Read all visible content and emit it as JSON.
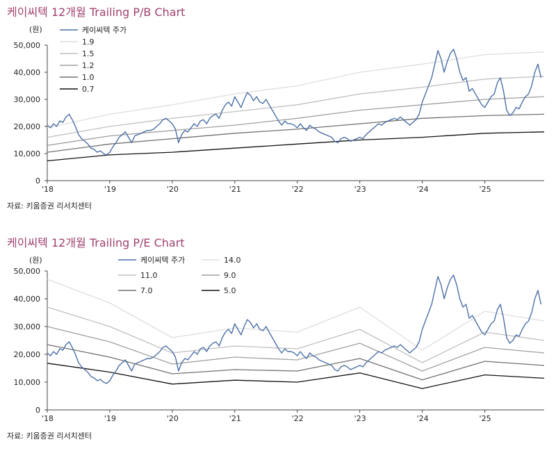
{
  "chart_data": [
    {
      "type": "line",
      "title": "케이씨텍 12개월 Trailing P/B Chart",
      "ylabel": "(원)",
      "source": "자료: 키움증권 리서치센터",
      "ylim": [
        0,
        50000
      ],
      "y_ticks": [
        "0",
        "10,000",
        "20,000",
        "30,000",
        "40,000",
        "50,000"
      ],
      "x_ticks": [
        "'18",
        "'19",
        "'20",
        "'21",
        "'22",
        "'23",
        "'24",
        "'25"
      ],
      "xlim": [
        2018,
        2025.95
      ],
      "legend": [
        "케이씨텍 주가",
        "1.9",
        "1.5",
        "1.2",
        "1.0",
        "0.7"
      ],
      "colors": {
        "price": "#4a6fa5",
        "b1": "#dedede",
        "b2": "#c0c0c0",
        "b3": "#a0a0a0",
        "b4": "#707070",
        "b5": "#111111"
      },
      "series": [
        {
          "name": "1.9",
          "x": [
            2018.0,
            2019.0,
            2020.0,
            2021.0,
            2022.0,
            2023.0,
            2024.0,
            2025.0,
            2025.95
          ],
          "values": [
            19500,
            24500,
            28000,
            32000,
            35000,
            40000,
            43000,
            46500,
            47500
          ]
        },
        {
          "name": "1.5",
          "x": [
            2018.0,
            2019.0,
            2020.0,
            2021.0,
            2022.0,
            2023.0,
            2024.0,
            2025.0,
            2025.95
          ],
          "values": [
            16000,
            20000,
            23000,
            25500,
            28000,
            32000,
            34500,
            37500,
            38500
          ]
        },
        {
          "name": "1.2",
          "x": [
            2018.0,
            2019.0,
            2020.0,
            2021.0,
            2022.0,
            2023.0,
            2024.0,
            2025.0,
            2025.95
          ],
          "values": [
            13000,
            16500,
            18500,
            20500,
            23000,
            26000,
            28000,
            30000,
            31000
          ]
        },
        {
          "name": "1.0",
          "x": [
            2018.0,
            2019.0,
            2020.0,
            2021.0,
            2022.0,
            2023.0,
            2024.0,
            2025.0,
            2025.95
          ],
          "values": [
            10500,
            13500,
            15500,
            17500,
            19000,
            21000,
            23000,
            24000,
            24500
          ]
        },
        {
          "name": "0.7",
          "x": [
            2018.0,
            2019.0,
            2020.0,
            2021.0,
            2022.0,
            2023.0,
            2024.0,
            2025.0,
            2025.95
          ],
          "values": [
            7300,
            9500,
            10500,
            12000,
            13500,
            15000,
            16000,
            17500,
            18000
          ]
        },
        {
          "name": "케이씨텍 주가",
          "x": [
            2018.0,
            2018.05,
            2018.1,
            2018.15,
            2018.2,
            2018.25,
            2018.3,
            2018.35,
            2018.4,
            2018.45,
            2018.5,
            2018.55,
            2018.6,
            2018.65,
            2018.7,
            2018.75,
            2018.8,
            2018.85,
            2018.9,
            2018.95,
            2019.0,
            2019.05,
            2019.1,
            2019.15,
            2019.2,
            2019.25,
            2019.3,
            2019.35,
            2019.4,
            2019.45,
            2019.5,
            2019.55,
            2019.6,
            2019.65,
            2019.7,
            2019.75,
            2019.8,
            2019.85,
            2019.9,
            2019.95,
            2020.0,
            2020.05,
            2020.1,
            2020.15,
            2020.2,
            2020.25,
            2020.3,
            2020.35,
            2020.4,
            2020.45,
            2020.5,
            2020.55,
            2020.6,
            2020.65,
            2020.7,
            2020.75,
            2020.8,
            2020.85,
            2020.9,
            2020.95,
            2021.0,
            2021.05,
            2021.1,
            2021.15,
            2021.2,
            2021.25,
            2021.3,
            2021.35,
            2021.4,
            2021.45,
            2021.5,
            2021.55,
            2021.6,
            2021.65,
            2021.7,
            2021.75,
            2021.8,
            2021.85,
            2021.9,
            2021.95,
            2022.0,
            2022.05,
            2022.1,
            2022.15,
            2022.2,
            2022.25,
            2022.3,
            2022.35,
            2022.4,
            2022.45,
            2022.5,
            2022.55,
            2022.6,
            2022.65,
            2022.7,
            2022.75,
            2022.8,
            2022.85,
            2022.9,
            2022.95,
            2023.0,
            2023.05,
            2023.1,
            2023.15,
            2023.2,
            2023.25,
            2023.3,
            2023.35,
            2023.4,
            2023.45,
            2023.5,
            2023.55,
            2023.6,
            2023.65,
            2023.7,
            2023.75,
            2023.8,
            2023.85,
            2023.9,
            2023.95,
            2024.0,
            2024.05,
            2024.1,
            2024.15,
            2024.2,
            2024.25,
            2024.3,
            2024.35,
            2024.4,
            2024.45,
            2024.5,
            2024.55,
            2024.6,
            2024.65,
            2024.7,
            2024.75,
            2024.8,
            2024.85,
            2024.9,
            2024.95,
            2025.0,
            2025.05,
            2025.1,
            2025.15,
            2025.2,
            2025.25,
            2025.3,
            2025.35,
            2025.4,
            2025.45,
            2025.5,
            2025.55,
            2025.6,
            2025.65,
            2025.7,
            2025.75,
            2025.8,
            2025.85,
            2025.9
          ],
          "values": [
            20500,
            19500,
            21000,
            20000,
            22000,
            21500,
            23500,
            24500,
            22500,
            20000,
            17000,
            15500,
            14500,
            13500,
            12000,
            11500,
            10500,
            11000,
            10000,
            9500,
            10500,
            12500,
            14000,
            16000,
            17000,
            18000,
            16000,
            14000,
            16500,
            17000,
            17500,
            18000,
            18500,
            18500,
            19000,
            20000,
            21000,
            22500,
            23000,
            22000,
            21000,
            19000,
            14000,
            17000,
            18500,
            18000,
            19500,
            21000,
            20000,
            22000,
            22500,
            21000,
            23000,
            24000,
            24500,
            23000,
            26000,
            28000,
            29000,
            27500,
            31000,
            29000,
            27000,
            30000,
            32500,
            31500,
            29500,
            31000,
            29000,
            28500,
            30000,
            28000,
            26000,
            24000,
            22000,
            20500,
            22000,
            21000,
            21000,
            20500,
            19500,
            21000,
            19500,
            18500,
            20500,
            19500,
            19000,
            18000,
            17500,
            17000,
            16500,
            16000,
            14500,
            14000,
            15500,
            16000,
            15500,
            14500,
            15000,
            15500,
            16000,
            15500,
            17000,
            18000,
            19000,
            20000,
            21000,
            20500,
            21500,
            22000,
            22500,
            23000,
            22500,
            23500,
            22500,
            21500,
            20500,
            21500,
            22500,
            24500,
            29000,
            32000,
            35000,
            38000,
            43000,
            48000,
            45000,
            40000,
            44000,
            47000,
            48500,
            45000,
            40000,
            37000,
            38000,
            33000,
            34000,
            32000,
            30000,
            28000,
            27000,
            29000,
            31000,
            32000,
            36000,
            38000,
            33000,
            26000,
            24000,
            25000,
            27000,
            26500,
            29000,
            31000,
            32000,
            35000,
            40000,
            43000,
            38000
          ]
        }
      ]
    },
    {
      "type": "line",
      "title": "케이씨텍 12개월 Trailing P/E Chart",
      "ylabel": "(원)",
      "source": "자료: 키움증권 리서치센터",
      "ylim": [
        0,
        50000
      ],
      "y_ticks": [
        "0",
        "10,000",
        "20,000",
        "30,000",
        "40,000",
        "50,000"
      ],
      "x_ticks": [
        "'18",
        "'19",
        "'20",
        "'21",
        "'22",
        "'23",
        "'24",
        "'25"
      ],
      "xlim": [
        2018,
        2025.95
      ],
      "legend": [
        "케이씨텍 주가",
        "14.0",
        "11.0",
        "9.0",
        "7.0",
        "5.0"
      ],
      "colors": {
        "price": "#4a6fa5",
        "b1": "#dedede",
        "b2": "#c0c0c0",
        "b3": "#a0a0a0",
        "b4": "#707070",
        "b5": "#111111"
      },
      "series": [
        {
          "name": "14.0",
          "x": [
            2018.0,
            2019.0,
            2020.0,
            2021.0,
            2022.0,
            2023.0,
            2024.0,
            2025.0,
            2025.95
          ],
          "values": [
            47000,
            38500,
            26000,
            29500,
            28000,
            37000,
            21500,
            35500,
            32000
          ]
        },
        {
          "name": "11.0",
          "x": [
            2018.0,
            2019.0,
            2020.0,
            2021.0,
            2022.0,
            2023.0,
            2024.0,
            2025.0,
            2025.95
          ],
          "values": [
            37000,
            30000,
            20500,
            23000,
            22000,
            29000,
            17000,
            28000,
            25000
          ]
        },
        {
          "name": "9.0",
          "x": [
            2018.0,
            2019.0,
            2020.0,
            2021.0,
            2022.0,
            2023.0,
            2024.0,
            2025.0,
            2025.95
          ],
          "values": [
            30000,
            24500,
            16500,
            19000,
            18000,
            24000,
            14000,
            22500,
            20500
          ]
        },
        {
          "name": "7.0",
          "x": [
            2018.0,
            2019.0,
            2020.0,
            2021.0,
            2022.0,
            2023.0,
            2024.0,
            2025.0,
            2025.95
          ],
          "values": [
            23500,
            19000,
            13000,
            14500,
            14000,
            18500,
            10800,
            17500,
            16000
          ]
        },
        {
          "name": "5.0",
          "x": [
            2018.0,
            2019.0,
            2020.0,
            2021.0,
            2022.0,
            2023.0,
            2024.0,
            2025.0,
            2025.95
          ],
          "values": [
            16800,
            13600,
            9300,
            10700,
            10000,
            13300,
            7700,
            12600,
            11400
          ]
        },
        {
          "name": "케이씨텍 주가",
          "x": [
            2018.0,
            2018.05,
            2018.1,
            2018.15,
            2018.2,
            2018.25,
            2018.3,
            2018.35,
            2018.4,
            2018.45,
            2018.5,
            2018.55,
            2018.6,
            2018.65,
            2018.7,
            2018.75,
            2018.8,
            2018.85,
            2018.9,
            2018.95,
            2019.0,
            2019.05,
            2019.1,
            2019.15,
            2019.2,
            2019.25,
            2019.3,
            2019.35,
            2019.4,
            2019.45,
            2019.5,
            2019.55,
            2019.6,
            2019.65,
            2019.7,
            2019.75,
            2019.8,
            2019.85,
            2019.9,
            2019.95,
            2020.0,
            2020.05,
            2020.1,
            2020.15,
            2020.2,
            2020.25,
            2020.3,
            2020.35,
            2020.4,
            2020.45,
            2020.5,
            2020.55,
            2020.6,
            2020.65,
            2020.7,
            2020.75,
            2020.8,
            2020.85,
            2020.9,
            2020.95,
            2021.0,
            2021.05,
            2021.1,
            2021.15,
            2021.2,
            2021.25,
            2021.3,
            2021.35,
            2021.4,
            2021.45,
            2021.5,
            2021.55,
            2021.6,
            2021.65,
            2021.7,
            2021.75,
            2021.8,
            2021.85,
            2021.9,
            2021.95,
            2022.0,
            2022.05,
            2022.1,
            2022.15,
            2022.2,
            2022.25,
            2022.3,
            2022.35,
            2022.4,
            2022.45,
            2022.5,
            2022.55,
            2022.6,
            2022.65,
            2022.7,
            2022.75,
            2022.8,
            2022.85,
            2022.9,
            2022.95,
            2023.0,
            2023.05,
            2023.1,
            2023.15,
            2023.2,
            2023.25,
            2023.3,
            2023.35,
            2023.4,
            2023.45,
            2023.5,
            2023.55,
            2023.6,
            2023.65,
            2023.7,
            2023.75,
            2023.8,
            2023.85,
            2023.9,
            2023.95,
            2024.0,
            2024.05,
            2024.1,
            2024.15,
            2024.2,
            2024.25,
            2024.3,
            2024.35,
            2024.4,
            2024.45,
            2024.5,
            2024.55,
            2024.6,
            2024.65,
            2024.7,
            2024.75,
            2024.8,
            2024.85,
            2024.9,
            2024.95,
            2025.0,
            2025.05,
            2025.1,
            2025.15,
            2025.2,
            2025.25,
            2025.3,
            2025.35,
            2025.4,
            2025.45,
            2025.5,
            2025.55,
            2025.6,
            2025.65,
            2025.7,
            2025.75,
            2025.8,
            2025.85,
            2025.9
          ],
          "values": [
            20500,
            19500,
            21000,
            20000,
            22000,
            21500,
            23500,
            24500,
            22500,
            20000,
            17000,
            15500,
            14500,
            13500,
            12000,
            11500,
            10500,
            11000,
            10000,
            9500,
            10500,
            12500,
            14000,
            16000,
            17000,
            18000,
            16000,
            14000,
            16500,
            17000,
            17500,
            18000,
            18500,
            18500,
            19000,
            20000,
            21000,
            22500,
            23000,
            22000,
            21000,
            19000,
            14000,
            17000,
            18500,
            18000,
            19500,
            21000,
            20000,
            22000,
            22500,
            21000,
            23000,
            24000,
            24500,
            23000,
            26000,
            28000,
            29000,
            27500,
            31000,
            29000,
            27000,
            30000,
            32500,
            31500,
            29500,
            31000,
            29000,
            28500,
            30000,
            28000,
            26000,
            24000,
            22000,
            20500,
            22000,
            21000,
            21000,
            20500,
            19500,
            21000,
            19500,
            18500,
            20500,
            19500,
            19000,
            18000,
            17500,
            17000,
            16500,
            16000,
            14500,
            14000,
            15500,
            16000,
            15500,
            14500,
            15000,
            15500,
            16000,
            15500,
            17000,
            18000,
            19000,
            20000,
            21000,
            20500,
            21500,
            22000,
            22500,
            23000,
            22500,
            23500,
            22500,
            21500,
            20500,
            21500,
            22500,
            24500,
            29000,
            32000,
            35000,
            38000,
            43000,
            48000,
            45000,
            40000,
            44000,
            47000,
            48500,
            45000,
            40000,
            37000,
            38000,
            33000,
            34000,
            32000,
            30000,
            28000,
            27000,
            29000,
            31000,
            32000,
            36000,
            38000,
            33000,
            26000,
            24000,
            25000,
            27000,
            26500,
            29000,
            31000,
            32000,
            35000,
            40000,
            43000,
            38000
          ]
        }
      ]
    }
  ]
}
